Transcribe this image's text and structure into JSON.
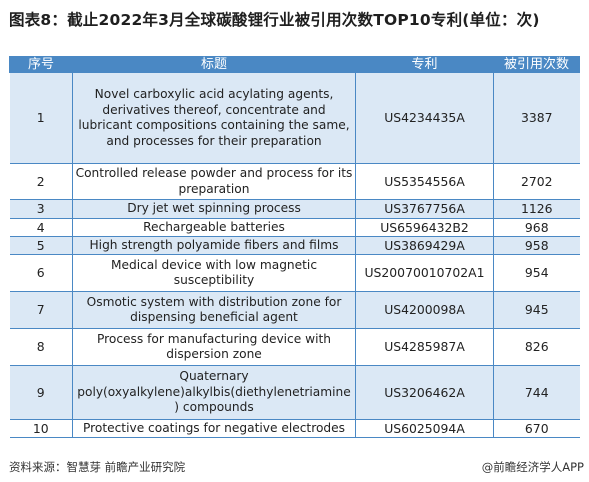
{
  "title": "图表8：截止2022年3月全球碳酸锂行业被引用次数TOP10专利(单位：次)",
  "table": {
    "headers": [
      "序号",
      "标题",
      "专利",
      "被引用次数"
    ],
    "rows": [
      {
        "no": "1",
        "name": "Novel carboxylic acid acylating agents, derivatives thereof, concentrate and lubricant compositions containing the same, and processes for their preparation",
        "patent": "US4234435A",
        "count": "3387"
      },
      {
        "no": "2",
        "name": "Controlled release powder and process for its preparation",
        "patent": "US5354556A",
        "count": "2702"
      },
      {
        "no": "3",
        "name": "Dry jet wet spinning process",
        "patent": "US3767756A",
        "count": "1126"
      },
      {
        "no": "4",
        "name": "Rechargeable batteries",
        "patent": "US6596432B2",
        "count": "968"
      },
      {
        "no": "5",
        "name": "High strength polyamide fibers and films",
        "patent": "US3869429A",
        "count": "958"
      },
      {
        "no": "6",
        "name": "Medical device with low magnetic susceptibility",
        "patent": "US20070010702A1",
        "count": "954"
      },
      {
        "no": "7",
        "name": "Osmotic system with distribution zone for dispensing beneficial agent",
        "patent": "US4200098A",
        "count": "945"
      },
      {
        "no": "8",
        "name": "Process for manufacturing device with dispersion zone",
        "patent": "US4285987A",
        "count": "826"
      },
      {
        "no": "9",
        "name": "Quaternary poly(oxyalkylene)alkylbis(diethylenetriamine) compounds",
        "patent": "US3206462A",
        "count": "744"
      },
      {
        "no": "10",
        "name": "Protective coatings for negative electrodes",
        "patent": "US6025094A",
        "count": "670"
      }
    ]
  },
  "footer": {
    "source": "资料来源：智慧芽 前瞻产业研究院",
    "brand": "@前瞻经济学人APP"
  },
  "colors": {
    "header_bg": "#4a88c4",
    "odd_row_bg": "#dbe8f5"
  }
}
